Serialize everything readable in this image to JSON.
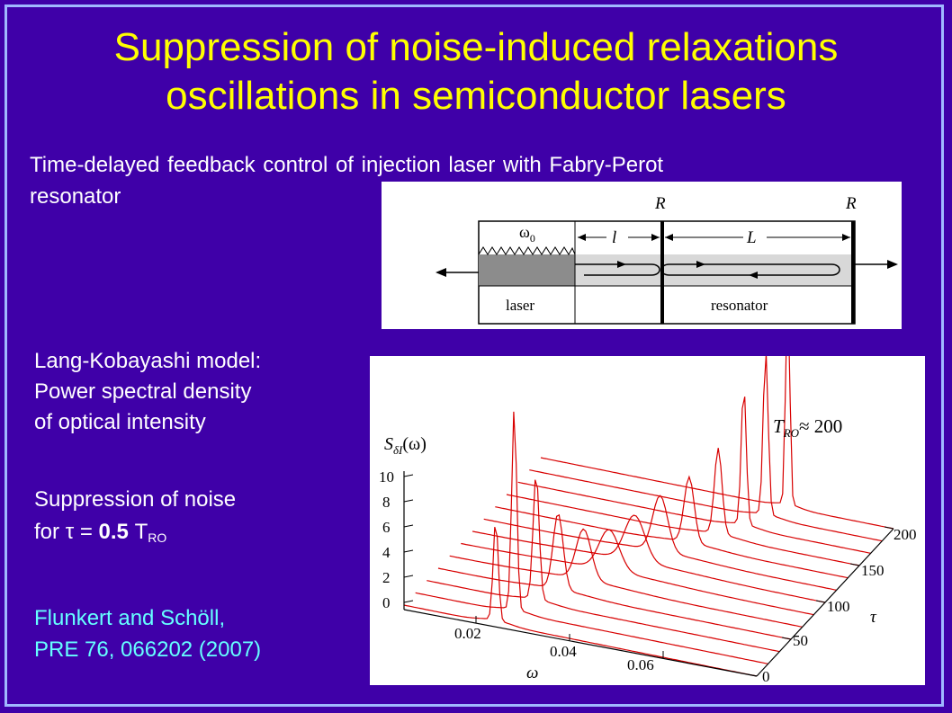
{
  "title_line1": "Suppression of noise-induced relaxations",
  "title_line2": "oscillations in semiconductor lasers",
  "subtitle_line1": "Time-delayed feedback control of injection laser with Fabry-Perot",
  "subtitle_line2": "resonator",
  "model": {
    "line1": "Lang-Kobayashi model:",
    "line2": "Power spectral density",
    "line3": "of optical intensity"
  },
  "suppression": {
    "line1": "Suppression of noise",
    "for": "for",
    "tau": "τ",
    "eq": "=",
    "value": "0.5",
    "T": "T",
    "sub": "RO"
  },
  "citation": {
    "line1": "Flunkert and Schöll,",
    "line2": "PRE 76, 066202 (2007)"
  },
  "diagram": {
    "R_left": "R",
    "R_right": "R",
    "omega0": "ω",
    "omega0_sub": "0",
    "l": "l",
    "L": "L",
    "laser": "laser",
    "resonator": "resonator"
  },
  "plot": {
    "y_label_main": "S",
    "y_label_sub": "δI",
    "y_label_arg": "(ω)",
    "annotation_left": "T",
    "annotation_sub": "RO",
    "annotation_right": "≈ 200",
    "z_ticks": [
      "10",
      "8",
      "6",
      "4",
      "2",
      "0"
    ],
    "x_ticks": [
      "0.02",
      "0.04",
      "0.06"
    ],
    "x_label": "ω",
    "tau_ticks": [
      "200",
      "150",
      "100",
      "50",
      "0"
    ],
    "tau_label": "τ"
  }
}
